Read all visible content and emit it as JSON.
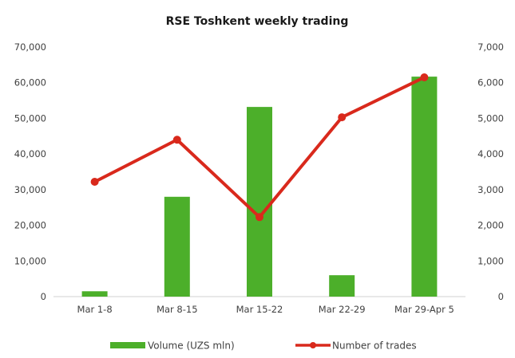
{
  "chart_data": {
    "type": "bar",
    "title": "RSE Toshkent weekly trading",
    "categories": [
      "Mar 1-8",
      "Mar 8-15",
      "Mar 15-22",
      "Mar 22-29",
      "Mar 29-Apr 5"
    ],
    "series": [
      {
        "name": "Volume (UZS mln)",
        "type": "bar",
        "axis": "left",
        "color": "#4caf2a",
        "values": [
          1500,
          28000,
          53200,
          6000,
          61700
        ]
      },
      {
        "name": "Number of trades",
        "type": "line",
        "axis": "right",
        "color": "#d9291c",
        "values": [
          3220,
          4400,
          2230,
          5030,
          6150
        ]
      }
    ],
    "y_left": {
      "ylim": [
        0,
        70000
      ],
      "ticks": [
        0,
        10000,
        20000,
        30000,
        40000,
        50000,
        60000,
        70000
      ],
      "tick_labels": [
        "0",
        "10,000",
        "20,000",
        "30,000",
        "40,000",
        "50,000",
        "60,000",
        "70,000"
      ]
    },
    "y_right": {
      "ylim": [
        0,
        7000
      ],
      "ticks": [
        0,
        1000,
        2000,
        3000,
        4000,
        5000,
        6000,
        7000
      ],
      "tick_labels": [
        "0",
        "1,000",
        "2,000",
        "3,000",
        "4,000",
        "5,000",
        "6,000",
        "7,000"
      ]
    },
    "grid": false,
    "legend": "bottom"
  }
}
